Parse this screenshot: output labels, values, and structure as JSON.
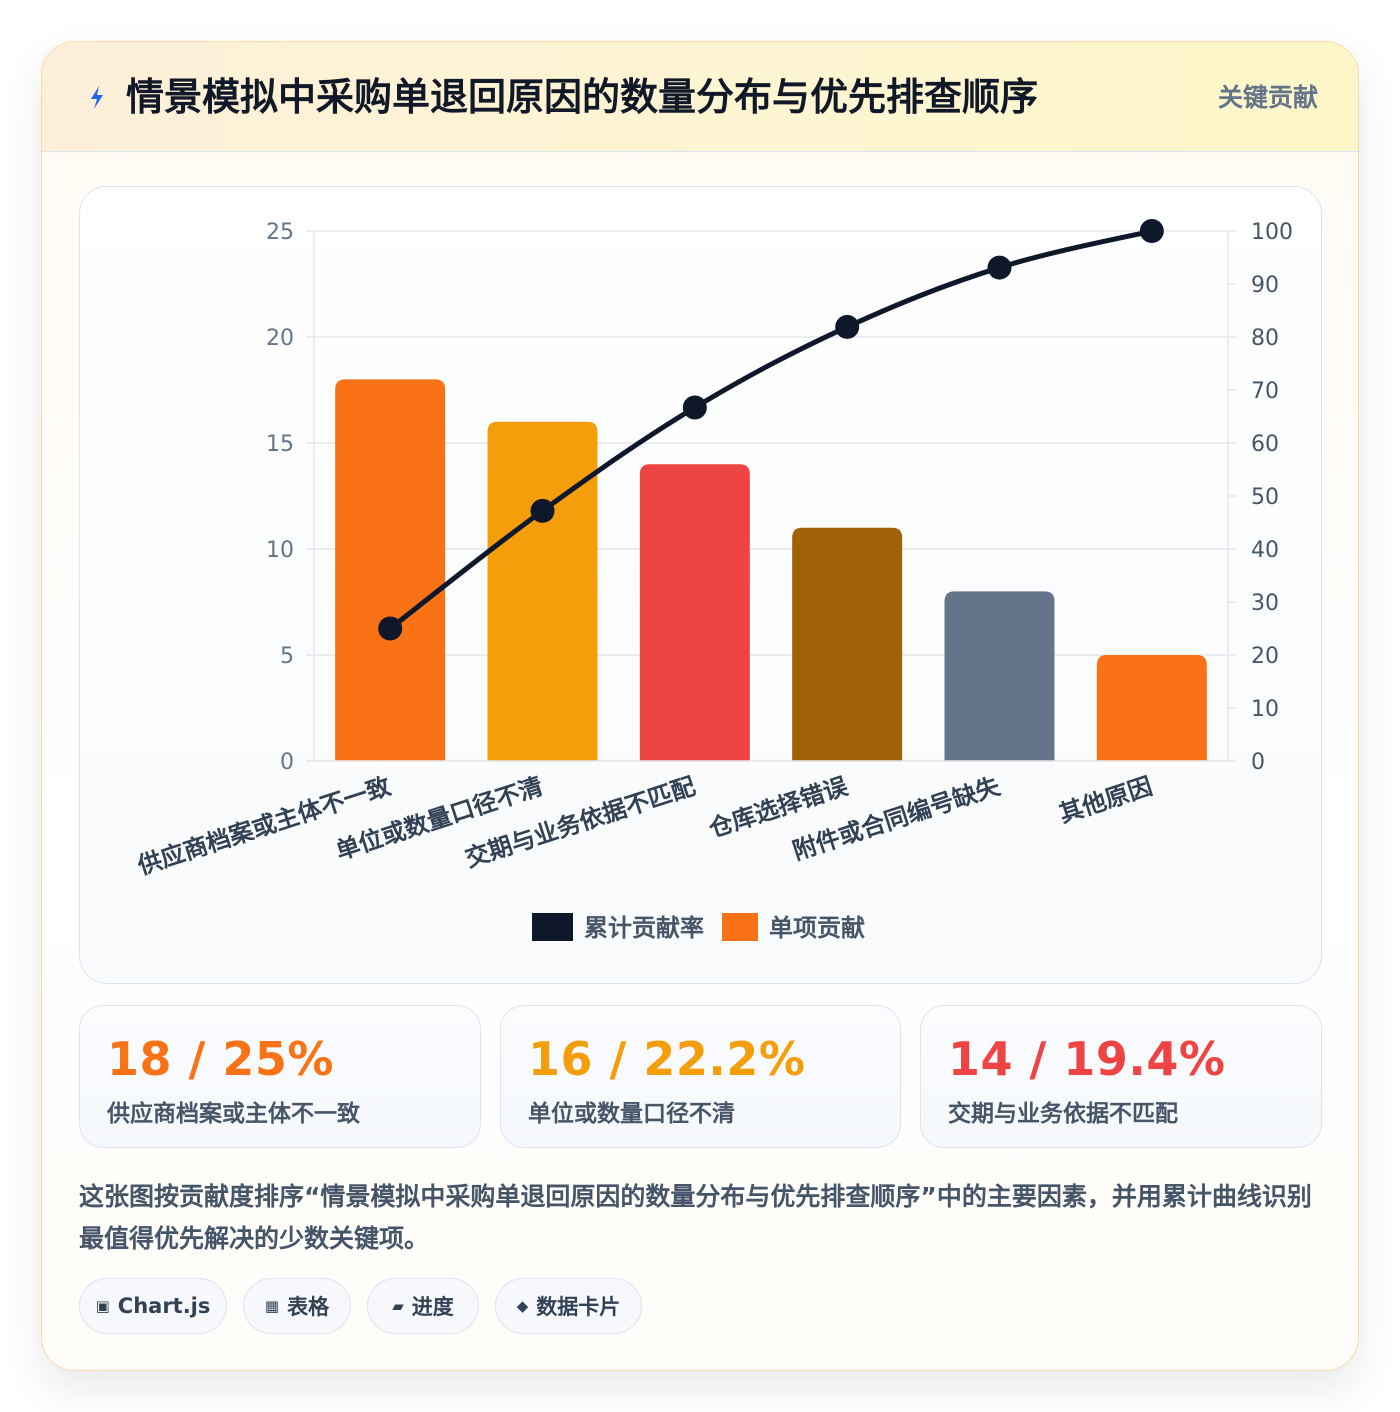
{
  "header": {
    "title": "情景模拟中采购单退回原因的数量分布与优先排查顺序",
    "badge": "关键贡献",
    "icon": "lightning-icon",
    "icon_color": "#2563eb"
  },
  "chart_data": {
    "type": "bar",
    "title": "",
    "categories": [
      "供应商档案或主体不一致",
      "单位或数量口径不清",
      "交期与业务依据不匹配",
      "仓库选择错误",
      "附件或合同编号缺失",
      "其他原因"
    ],
    "series": [
      {
        "name": "单项贡献",
        "type": "bar",
        "axis": "left",
        "values": [
          18,
          16,
          14,
          11,
          8,
          5
        ],
        "colors": [
          "#f97316",
          "#f59e0b",
          "#ef4444",
          "#a16207",
          "#64748b",
          "#f97316"
        ]
      },
      {
        "name": "累计贡献率",
        "type": "line",
        "axis": "right",
        "values": [
          25,
          47.2,
          66.7,
          81.9,
          93.1,
          100
        ],
        "color": "#0f172a"
      }
    ],
    "y_left": {
      "min": 0,
      "max": 25,
      "ticks": [
        0,
        5,
        10,
        15,
        20,
        25
      ]
    },
    "y_right": {
      "min": 0,
      "max": 100,
      "ticks": [
        0,
        10,
        20,
        30,
        40,
        50,
        60,
        70,
        80,
        90,
        100
      ]
    },
    "xlabel": "",
    "ylabel": "",
    "grid": true,
    "legend_position": "bottom",
    "legend": [
      {
        "label": "累计贡献率",
        "color": "#0f172a"
      },
      {
        "label": "单项贡献",
        "color": "#f97316"
      }
    ]
  },
  "stats": [
    {
      "value": "18 / 25%",
      "label": "供应商档案或主体不一致",
      "color": "#f97316"
    },
    {
      "value": "16 / 22.2%",
      "label": "单位或数量口径不清",
      "color": "#f59e0b"
    },
    {
      "value": "14 / 19.4%",
      "label": "交期与业务依据不匹配",
      "color": "#ef4444"
    }
  ],
  "description": "这张图按贡献度排序“情景模拟中采购单退回原因的数量分布与优先排查顺序”中的主要因素，并用累计曲线识别最值得优先解决的少数关键项。",
  "tags": [
    {
      "icon": "▣",
      "label": "Chart.js"
    },
    {
      "icon": "▦",
      "label": "表格"
    },
    {
      "icon": "▰",
      "label": "进度"
    },
    {
      "icon": "◆",
      "label": "数据卡片"
    }
  ]
}
